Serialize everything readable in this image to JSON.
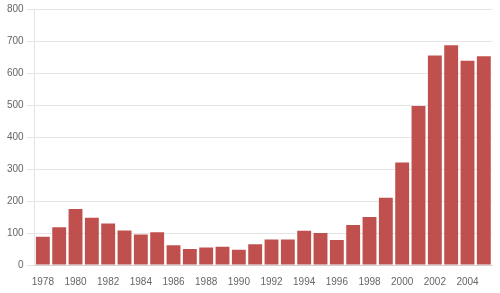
{
  "chart_data": {
    "type": "bar",
    "categories": [
      "1978",
      null,
      "1980",
      null,
      "1982",
      null,
      "1984",
      null,
      "1986",
      null,
      "1988",
      null,
      "1990",
      null,
      "1992",
      null,
      "1994",
      null,
      "1996",
      null,
      "1998",
      null,
      "2000",
      null,
      "2002",
      null,
      "2004",
      null
    ],
    "values": [
      88,
      118,
      175,
      148,
      130,
      108,
      95,
      102,
      62,
      50,
      55,
      57,
      48,
      65,
      80,
      80,
      107,
      100,
      78,
      125,
      150,
      210,
      320,
      497,
      655,
      687,
      638,
      652
    ],
    "color": "#C0504D",
    "ylim": [
      0,
      800
    ],
    "yticks": [
      0,
      100,
      200,
      300,
      400,
      500,
      600,
      700,
      800
    ],
    "grid": "y"
  }
}
